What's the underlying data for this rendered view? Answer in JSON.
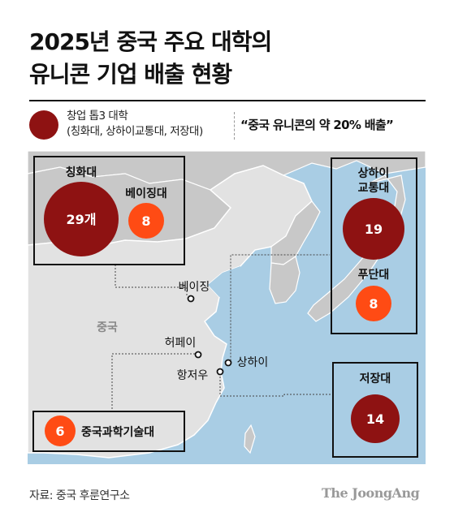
{
  "title": {
    "line1": "2025년 중국 주요 대학의",
    "line2": "유니콘 기업 배출 현황"
  },
  "legend": {
    "line1": "창업 톱3 대학",
    "line2": "(칭화대, 상하이교통대, 저장대)",
    "quote": "“중국 유니콘의 약 20% 배출”"
  },
  "colors": {
    "top3": "#8e1212",
    "other": "#ff4b14",
    "sea": "#a9cde4",
    "china_land": "#e2e2e2",
    "other_land": "#c8c8c8"
  },
  "map": {
    "country_label": "중국",
    "cities": {
      "beijing": "베이징",
      "hefei": "허페이",
      "hangzhou": "항저우",
      "shanghai": "상하이"
    },
    "universities": {
      "tsinghua": {
        "name": "칭화대",
        "value": "29개"
      },
      "beijing_jiaotong": {
        "name": "베이징대",
        "value": "8"
      },
      "sjtu": {
        "name_line1": "상하이",
        "name_line2": "교통대",
        "value": "19"
      },
      "fudan": {
        "name": "푸단대",
        "value": "8"
      },
      "zju": {
        "name": "저장대",
        "value": "14"
      },
      "ustc": {
        "name": "중국과학기술대",
        "value": "6"
      }
    }
  },
  "footer": {
    "source": "자료: 중국 후룬연구소",
    "brand": "The JoongAng"
  }
}
